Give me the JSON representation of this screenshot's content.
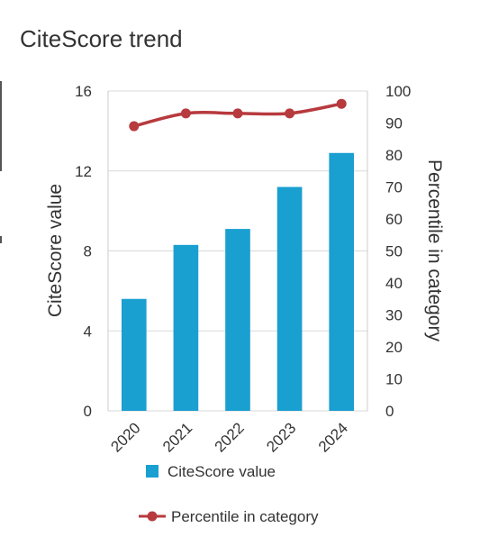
{
  "chart_data": {
    "type": "bar",
    "title": "CiteScore trend",
    "categories": [
      "2020",
      "2021",
      "2022",
      "2023",
      "2024"
    ],
    "series": [
      {
        "name": "CiteScore value",
        "kind": "bar",
        "axis": "left",
        "values": [
          5.6,
          8.3,
          9.1,
          11.2,
          12.9
        ],
        "color": "#1a9fd1"
      },
      {
        "name": "Percentile in category",
        "kind": "line",
        "axis": "right",
        "values": [
          89,
          93,
          93,
          93,
          96
        ],
        "color": "#b73a3e"
      }
    ],
    "ylabel": "CiteScore value",
    "ylim": [
      0,
      16
    ],
    "yticks": [
      "0",
      "4",
      "8",
      "12",
      "16"
    ],
    "y2label": "Percentile in category",
    "y2lim": [
      0,
      100
    ],
    "y2ticks": [
      "0",
      "10",
      "20",
      "30",
      "40",
      "50",
      "60",
      "70",
      "80",
      "90",
      "100"
    ],
    "grid": true,
    "legend_position": "bottom"
  },
  "colors": {
    "grid": "#d9d9d9",
    "frame": "#cccccc",
    "text": "#333333"
  }
}
